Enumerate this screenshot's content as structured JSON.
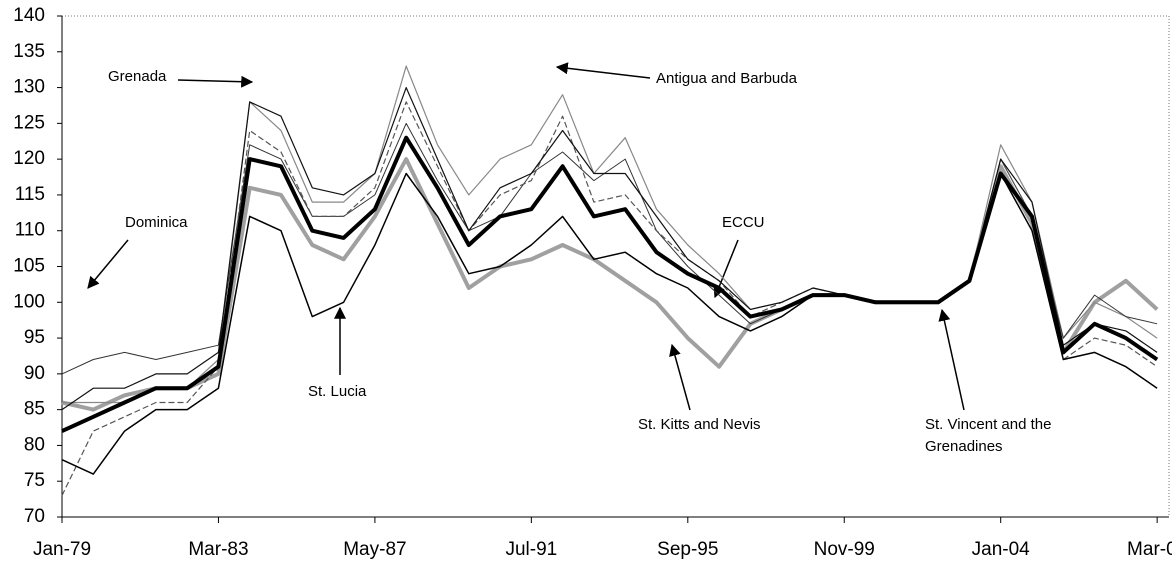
{
  "chart_data": {
    "type": "line",
    "categories": [
      "Jan-79",
      null,
      null,
      null,
      null,
      "Mar-83",
      null,
      null,
      null,
      null,
      "May-87",
      null,
      null,
      null,
      null,
      "Jul-91",
      null,
      null,
      null,
      null,
      "Sep-95",
      null,
      null,
      null,
      null,
      "Nov-99",
      null,
      null,
      null,
      null,
      "Jan-04",
      null,
      null,
      null,
      null,
      "Mar-08"
    ],
    "series": [
      {
        "name": "ECCU",
        "color": "#000000",
        "values": [
          82,
          84,
          86,
          88,
          88,
          91,
          120,
          119,
          110,
          109,
          113,
          123,
          116,
          108,
          112,
          113,
          119,
          112,
          113,
          107,
          104,
          102,
          98,
          99,
          101,
          101,
          100,
          100,
          100,
          103,
          118,
          112,
          93,
          97,
          95,
          92
        ]
      },
      {
        "name": "Grenada",
        "color": "#111111",
        "values": [
          85,
          88,
          88,
          90,
          90,
          93,
          128,
          126,
          116,
          115,
          118,
          130,
          120,
          110,
          116,
          118,
          124,
          118,
          118,
          112,
          106,
          103,
          99,
          100,
          102,
          101,
          100,
          100,
          100,
          103,
          120,
          114,
          94,
          97,
          96,
          93
        ]
      },
      {
        "name": "Antigua and Barbuda",
        "color": "#888888",
        "values": [
          86,
          86,
          86,
          88,
          88,
          92,
          128,
          124,
          114,
          114,
          118,
          133,
          122,
          115,
          120,
          122,
          129,
          118,
          123,
          113,
          108,
          104,
          99,
          100,
          102,
          101,
          100,
          100,
          100,
          103,
          122,
          114,
          95,
          100,
          98,
          95
        ]
      },
      {
        "name": "Dominica",
        "color": "#555555",
        "values": [
          73,
          82,
          84,
          86,
          86,
          91,
          124,
          121,
          112,
          112,
          116,
          128,
          119,
          110,
          115,
          117,
          126,
          114,
          115,
          110,
          106,
          103,
          98,
          100,
          102,
          101,
          100,
          100,
          100,
          103,
          120,
          112,
          92,
          95,
          94,
          91
        ]
      },
      {
        "name": "St. Lucia",
        "color": "#000000",
        "values": [
          78,
          76,
          82,
          85,
          85,
          88,
          112,
          110,
          98,
          100,
          108,
          118,
          112,
          104,
          105,
          108,
          112,
          106,
          107,
          104,
          102,
          98,
          96,
          98,
          101,
          101,
          100,
          100,
          100,
          103,
          118,
          110,
          92,
          93,
          91,
          88
        ]
      },
      {
        "name": "St. Kitts and Nevis",
        "color": "#a0a0a0",
        "values": [
          86,
          85,
          87,
          88,
          88,
          90,
          116,
          115,
          108,
          106,
          112,
          120,
          111,
          102,
          105,
          106,
          108,
          106,
          103,
          100,
          95,
          91,
          97,
          99,
          101,
          101,
          100,
          100,
          100,
          103,
          119,
          111,
          93,
          100,
          103,
          99
        ]
      },
      {
        "name": "St. Vincent and the Grenadines",
        "color": "#333333",
        "values": [
          90,
          92,
          93,
          92,
          93,
          94,
          122,
          120,
          112,
          112,
          115,
          125,
          117,
          110,
          112,
          118,
          121,
          117,
          120,
          110,
          105,
          101,
          97,
          99,
          101,
          101,
          100,
          100,
          100,
          103,
          120,
          112,
          95,
          101,
          98,
          97
        ]
      }
    ],
    "ylim": [
      70,
      140
    ],
    "yticks": [
      70,
      75,
      80,
      85,
      90,
      95,
      100,
      105,
      110,
      115,
      120,
      125,
      130,
      135,
      140
    ],
    "grid": false
  }
}
